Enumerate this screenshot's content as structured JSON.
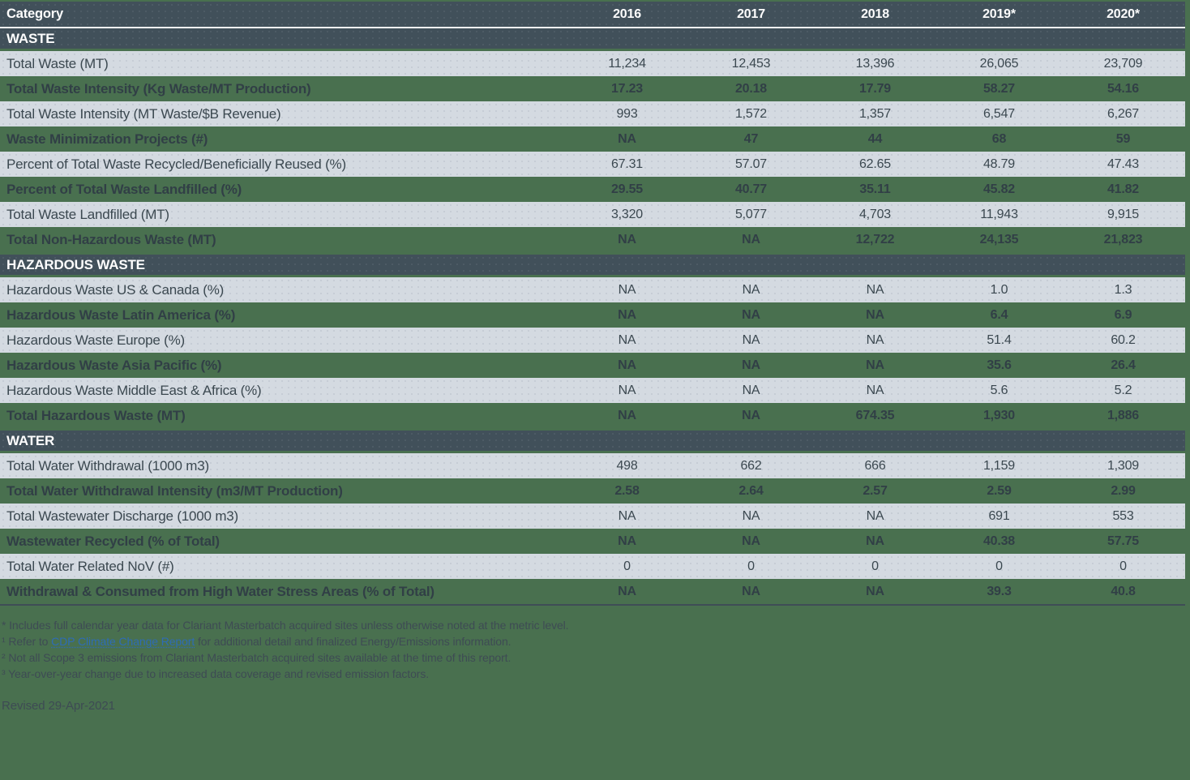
{
  "colors": {
    "page_background": "#49704f",
    "header_band": "#41505a",
    "light_row": "#d4dae1",
    "header_text": "#fdfdfd",
    "body_text": "#3b4850",
    "green_row_text": "#313f46",
    "link_blue": "#2e6cb5"
  },
  "chart_data": {
    "type": "table",
    "header": {
      "category": "Category",
      "years": [
        "2016",
        "2017",
        "2018",
        "2019*",
        "2020*"
      ]
    },
    "sections": [
      {
        "title": "WASTE",
        "rows": [
          {
            "label": "Total Waste (MT)",
            "values": [
              "11,234",
              "12,453",
              "13,396",
              "26,065",
              "23,709"
            ]
          },
          {
            "label": "Total Waste Intensity (Kg Waste/MT Production)",
            "values": [
              "17.23",
              "20.18",
              "17.79",
              "58.27",
              "54.16"
            ]
          },
          {
            "label": "Total Waste Intensity (MT Waste/$B Revenue)",
            "values": [
              "993",
              "1,572",
              "1,357",
              "6,547",
              "6,267"
            ]
          },
          {
            "label": "Waste Minimization Projects (#)",
            "values": [
              "NA",
              "47",
              "44",
              "68",
              "59"
            ]
          },
          {
            "label": "Percent of Total Waste Recycled/Beneficially Reused (%)",
            "values": [
              "67.31",
              "57.07",
              "62.65",
              "48.79",
              "47.43"
            ]
          },
          {
            "label": "Percent of Total Waste Landfilled (%)",
            "values": [
              "29.55",
              "40.77",
              "35.11",
              "45.82",
              "41.82"
            ]
          },
          {
            "label": "Total Waste Landfilled (MT)",
            "values": [
              "3,320",
              "5,077",
              "4,703",
              "11,943",
              "9,915"
            ]
          },
          {
            "label": "Total Non-Hazardous Waste (MT)",
            "values": [
              "NA",
              "NA",
              "12,722",
              "24,135",
              "21,823"
            ]
          }
        ]
      },
      {
        "title": "HAZARDOUS WASTE",
        "rows": [
          {
            "label": "Hazardous Waste US & Canada (%)",
            "values": [
              "NA",
              "NA",
              "NA",
              "1.0",
              "1.3"
            ]
          },
          {
            "label": "Hazardous Waste Latin America (%)",
            "values": [
              "NA",
              "NA",
              "NA",
              "6.4",
              "6.9"
            ]
          },
          {
            "label": "Hazardous Waste Europe (%)",
            "values": [
              "NA",
              "NA",
              "NA",
              "51.4",
              "60.2"
            ]
          },
          {
            "label": "Hazardous Waste Asia Pacific (%)",
            "values": [
              "NA",
              "NA",
              "NA",
              "35.6",
              "26.4"
            ]
          },
          {
            "label": "Hazardous Waste Middle East & Africa (%)",
            "values": [
              "NA",
              "NA",
              "NA",
              "5.6",
              "5.2"
            ]
          },
          {
            "label": "Total Hazardous Waste (MT)",
            "values": [
              "NA",
              "NA",
              "674.35",
              "1,930",
              "1,886"
            ]
          }
        ]
      },
      {
        "title": "WATER",
        "rows": [
          {
            "label": "Total Water Withdrawal (1000 m3)",
            "values": [
              "498",
              "662",
              "666",
              "1,159",
              "1,309"
            ]
          },
          {
            "label": "Total Water Withdrawal Intensity (m3/MT Production)",
            "values": [
              "2.58",
              "2.64",
              "2.57",
              "2.59",
              "2.99"
            ]
          },
          {
            "label": "Total Wastewater Discharge (1000 m3)",
            "values": [
              "NA",
              "NA",
              "NA",
              "691",
              "553"
            ]
          },
          {
            "label": "Wastewater Recycled (% of Total)",
            "values": [
              "NA",
              "NA",
              "NA",
              "40.38",
              "57.75"
            ]
          },
          {
            "label": "Total Water Related NoV (#)",
            "values": [
              "0",
              "0",
              "0",
              "0",
              "0"
            ]
          },
          {
            "label": "Withdrawal & Consumed from High Water Stress Areas (% of Total)",
            "values": [
              "NA",
              "NA",
              "NA",
              "39.3",
              "40.8"
            ]
          }
        ]
      }
    ]
  },
  "footnotes": {
    "star": "* Includes full calendar year data for Clariant Masterbatch acquired sites unless otherwise noted at the metric level.",
    "note1_prefix": "¹ Refer to ",
    "note1_link": "CDP Climate Change Report",
    "note1_suffix": " for additional detail and finalized Energy/Emissions information.",
    "note2": "² Not all Scope 3 emissions from Clariant Masterbatch acquired sites available at the time of this report.",
    "note3": "³ Year-over-year change due to increased data coverage and revised emission factors.",
    "revised": "Revised 29-Apr-2021"
  }
}
